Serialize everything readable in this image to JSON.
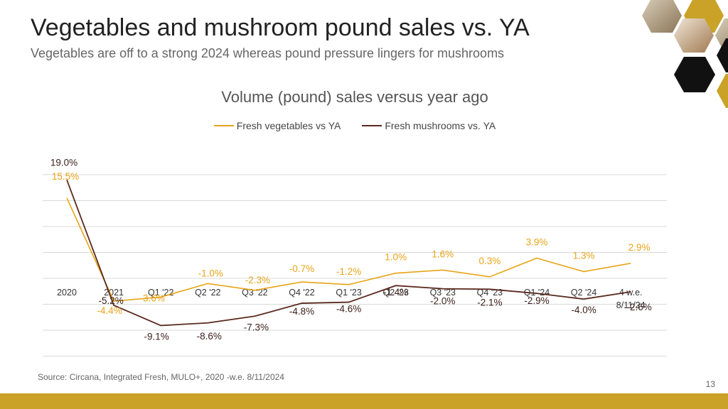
{
  "header": {
    "title": "Vegetables and mushroom pound sales vs. YA",
    "subtitle": "Vegetables are off to a strong 2024 whereas pound pressure lingers for mushrooms"
  },
  "footer": {
    "source": "Source: Circana, Integrated Fresh, MULO+, 2020 -w.e. 8/11/2024",
    "page_number": "13"
  },
  "colors": {
    "vegetables": "#e8a317",
    "mushrooms": "#5a2a1e",
    "accent_bar": "#c9a227",
    "gridline": "#d9d9d9"
  },
  "decoration": {
    "hexagon_images": [
      "mushroom-photo",
      "mushroom-photo",
      "mushroom-photo"
    ]
  },
  "chart_data": {
    "type": "line",
    "title": "Volume (pound) sales versus year ago",
    "categories": [
      "2020",
      "2021",
      "Q1 '22",
      "Q2 '22",
      "Q3 '22",
      "Q4 '22",
      "Q1 '23",
      "Q2 '23",
      "Q3 '23",
      "Q4 '23",
      "Q1 '24",
      "Q2 '24",
      "4 w.e. 8/11/24"
    ],
    "category_lines": [
      [
        "2020"
      ],
      [
        "2021"
      ],
      [
        "Q1 '22"
      ],
      [
        "Q2 '22"
      ],
      [
        "Q3 '22"
      ],
      [
        "Q4 '22"
      ],
      [
        "Q1 '23"
      ],
      [
        "Q2 '23"
      ],
      [
        "Q3 '23"
      ],
      [
        "Q4 '23"
      ],
      [
        "Q1 '24"
      ],
      [
        "Q2 '24"
      ],
      [
        "4 w.e.",
        "8/11/24"
      ]
    ],
    "series": [
      {
        "name": "Fresh vegetables vs YA",
        "values": [
          15.5,
          -4.4,
          -3.6,
          -1.0,
          -2.3,
          -0.7,
          -1.2,
          1.0,
          1.6,
          0.3,
          3.9,
          1.3,
          2.9
        ],
        "labels": [
          "15.5%",
          "-4.4%",
          "-3.6%",
          "-1.0%",
          "-2.3%",
          "-0.7%",
          "-1.2%",
          "1.0%",
          "1.6%",
          "0.3%",
          "3.9%",
          "1.3%",
          "2.9%"
        ]
      },
      {
        "name": "Fresh mushrooms vs. YA",
        "values": [
          19.0,
          -5.2,
          -9.1,
          -8.6,
          -7.3,
          -4.8,
          -4.6,
          -1.4,
          -2.0,
          -2.1,
          -2.9,
          -4.0,
          -2.6
        ],
        "labels": [
          "19.0%",
          "-5.2%",
          "-9.1%",
          "-8.6%",
          "-7.3%",
          "-4.8%",
          "-4.6%",
          "-1.4%",
          "-2.0%",
          "-2.1%",
          "-2.9%",
          "-4.0%",
          "-2.6%"
        ]
      }
    ],
    "ylim": [
      -12,
      20
    ],
    "grid": true,
    "legend_position": "top-center",
    "xlabel": "",
    "ylabel": ""
  }
}
